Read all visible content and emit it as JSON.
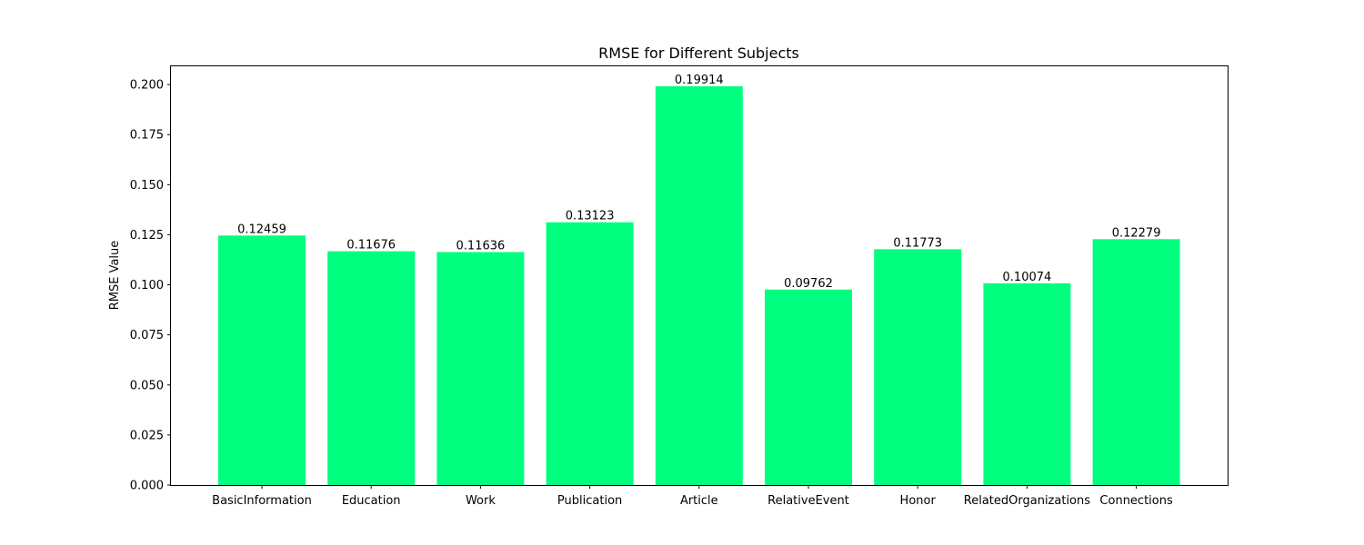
{
  "chart_data": {
    "type": "bar",
    "title": "RMSE for Different Subjects",
    "xlabel": "",
    "ylabel": "RMSE Value",
    "categories": [
      "BasicInformation",
      "Education",
      "Work",
      "Publication",
      "Article",
      "RelativeEvent",
      "Honor",
      "RelatedOrganizations",
      "Connections"
    ],
    "values": [
      0.12459,
      0.11676,
      0.11636,
      0.13123,
      0.19914,
      0.09762,
      0.11773,
      0.10074,
      0.12279
    ],
    "value_labels": [
      "0.12459",
      "0.11676",
      "0.11636",
      "0.13123",
      "0.19914",
      "0.09762",
      "0.11773",
      "0.10074",
      "0.12279"
    ],
    "ylim": [
      0,
      0.2091
    ],
    "yticks": [
      0.0,
      0.025,
      0.05,
      0.075,
      0.1,
      0.125,
      0.15,
      0.175,
      0.2
    ],
    "ytick_labels": [
      "0.000",
      "0.025",
      "0.050",
      "0.075",
      "0.100",
      "0.125",
      "0.150",
      "0.175",
      "0.200"
    ],
    "bar_color": "#00ff7f",
    "grid": false,
    "legend": "none"
  }
}
